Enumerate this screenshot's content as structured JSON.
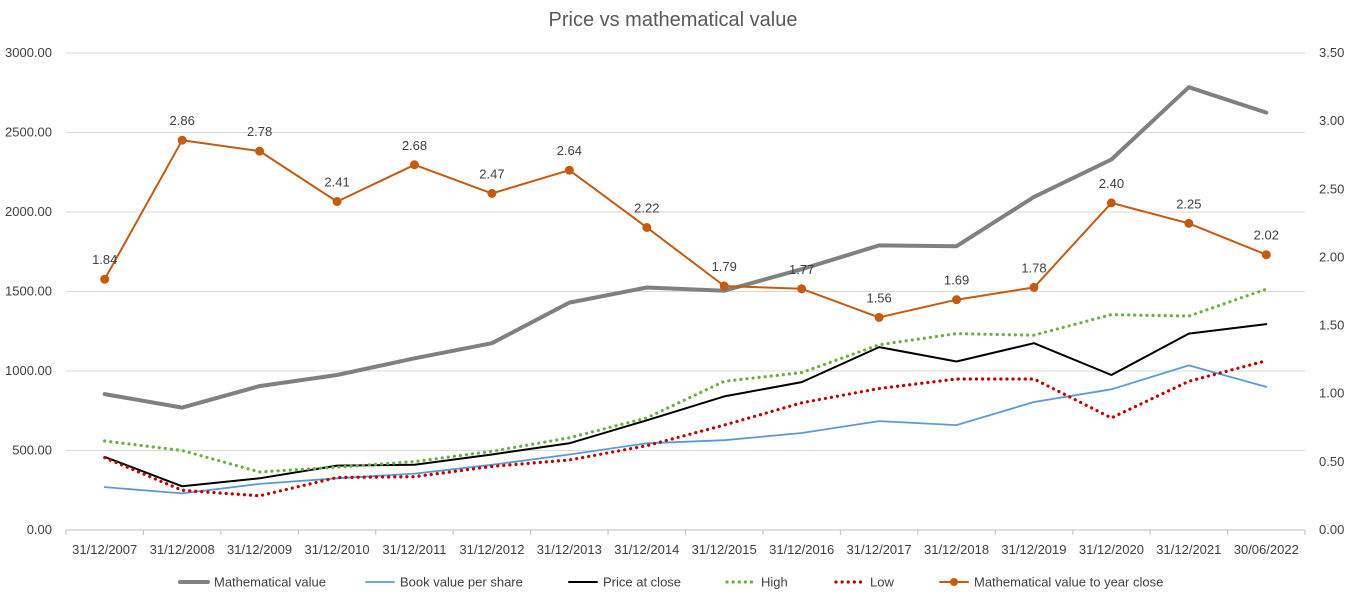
{
  "chart_data": {
    "type": "line",
    "title": "Price vs mathematical value",
    "categories": [
      "31/12/2007",
      "31/12/2008",
      "31/12/2009",
      "31/12/2010",
      "31/12/2011",
      "31/12/2012",
      "31/12/2013",
      "31/12/2014",
      "31/12/2015",
      "31/12/2016",
      "31/12/2017",
      "31/12/2018",
      "31/12/2019",
      "31/12/2020",
      "31/12/2021",
      "30/06/2022"
    ],
    "y_left": {
      "range": [
        0,
        3000
      ],
      "ticks": [
        "0.00",
        "500.00",
        "1000.00",
        "1500.00",
        "2000.00",
        "2500.00",
        "3000.00"
      ]
    },
    "y_right": {
      "range": [
        0,
        3.5
      ],
      "ticks": [
        "0.00",
        "0.50",
        "1.00",
        "1.50",
        "2.00",
        "2.50",
        "3.00",
        "3.50"
      ]
    },
    "grid": "horizontal",
    "legend_position": "bottom",
    "series": [
      {
        "name": "Mathematical value",
        "axis": "left",
        "color": "#808080",
        "style": "solid-thick",
        "values": [
          855,
          770,
          905,
          975,
          1080,
          1175,
          1430,
          1525,
          1505,
          1640,
          1790,
          1785,
          2095,
          2330,
          2785,
          2625
        ]
      },
      {
        "name": "Book value per share",
        "axis": "left",
        "color": "#5B9BD5",
        "style": "solid-thin",
        "values": [
          270,
          230,
          290,
          325,
          355,
          410,
          475,
          545,
          565,
          610,
          685,
          660,
          805,
          885,
          1035,
          900
        ]
      },
      {
        "name": "Price at close",
        "axis": "left",
        "color": "#000000",
        "style": "solid",
        "values": [
          460,
          275,
          325,
          405,
          410,
          475,
          545,
          690,
          840,
          930,
          1150,
          1060,
          1175,
          975,
          1235,
          1295
        ]
      },
      {
        "name": "High",
        "axis": "left",
        "color": "#70AD47",
        "style": "dotted",
        "values": [
          560,
          500,
          365,
          395,
          430,
          495,
          580,
          705,
          935,
          990,
          1165,
          1235,
          1225,
          1355,
          1345,
          1515
        ]
      },
      {
        "name": "Low",
        "axis": "left",
        "color": "#C00000",
        "style": "dotted",
        "values": [
          455,
          250,
          215,
          330,
          335,
          400,
          440,
          530,
          660,
          800,
          890,
          950,
          950,
          705,
          935,
          1065
        ]
      },
      {
        "name": "Mathematical value to year close",
        "axis": "right",
        "color": "#C55A11",
        "style": "solid-markers",
        "values": [
          1.84,
          2.86,
          2.78,
          2.41,
          2.68,
          2.47,
          2.64,
          2.22,
          1.79,
          1.77,
          1.56,
          1.69,
          1.78,
          2.4,
          2.25,
          2.02
        ],
        "labels": [
          "1.84",
          "2.86",
          "2.78",
          "2.41",
          "2.68",
          "2.47",
          "2.64",
          "2.22",
          "1.79",
          "1.77",
          "1.56",
          "1.69",
          "1.78",
          "2.40",
          "2.25",
          "2.02"
        ]
      }
    ]
  }
}
